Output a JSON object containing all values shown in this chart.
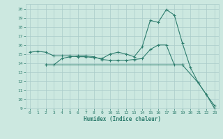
{
  "xlabel": "Humidex (Indice chaleur)",
  "bg_color": "#cce8e0",
  "grid_color": "#aaccca",
  "line_color": "#2e7d6e",
  "xlim": [
    -0.5,
    23.5
  ],
  "ylim": [
    9,
    20.5
  ],
  "yticks": [
    9,
    10,
    11,
    12,
    13,
    14,
    15,
    16,
    17,
    18,
    19,
    20
  ],
  "xticks": [
    0,
    1,
    2,
    3,
    4,
    5,
    6,
    7,
    8,
    9,
    10,
    11,
    12,
    13,
    14,
    15,
    16,
    17,
    18,
    19,
    20,
    21,
    22,
    23
  ],
  "line1_x": [
    0,
    1,
    2,
    3,
    4,
    5,
    6,
    7,
    8,
    9,
    10,
    11,
    12,
    13,
    14,
    15,
    16,
    17,
    18,
    19,
    20,
    21,
    22,
    23
  ],
  "line1_y": [
    15.2,
    15.3,
    15.2,
    14.8,
    14.8,
    14.8,
    14.7,
    14.7,
    14.6,
    14.5,
    15.0,
    15.2,
    15.0,
    14.7,
    15.8,
    18.7,
    18.5,
    19.9,
    19.3,
    16.2,
    13.5,
    11.8,
    10.5,
    9.0
  ],
  "line2_x": [
    2,
    3,
    4,
    5,
    6,
    7,
    8,
    9,
    10,
    11,
    12,
    13,
    14,
    15,
    16,
    17,
    18,
    19
  ],
  "line2_y": [
    13.8,
    13.8,
    14.5,
    14.7,
    14.8,
    14.8,
    14.7,
    14.4,
    14.3,
    14.3,
    14.3,
    14.4,
    14.5,
    15.5,
    16.0,
    16.0,
    13.8,
    13.8
  ],
  "line3_x": [
    2,
    19,
    21,
    22,
    23
  ],
  "line3_y": [
    13.8,
    13.8,
    11.8,
    10.5,
    9.3
  ]
}
